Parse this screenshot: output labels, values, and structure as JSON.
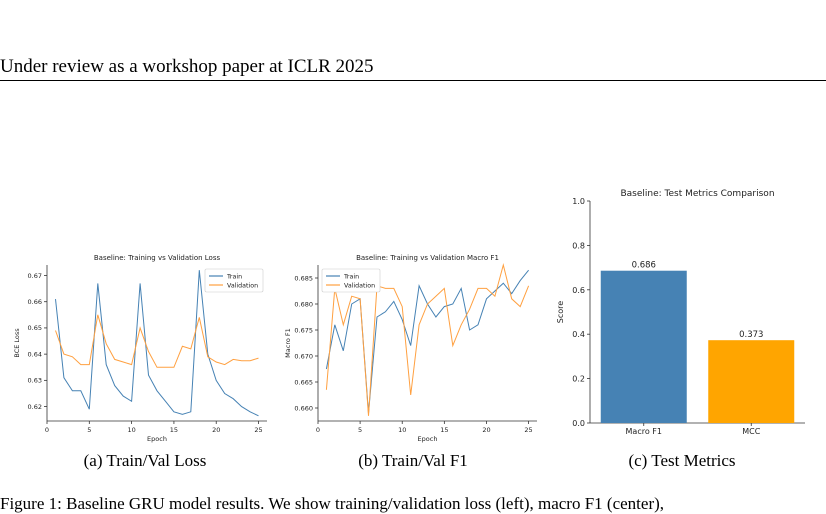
{
  "header": {
    "text": "Under review as a workshop paper at ICLR 2025"
  },
  "colors": {
    "train": "#4682b4",
    "validation": "#ffa040",
    "bar_macro": "#4682b4",
    "bar_mcc": "#ffa500"
  },
  "captions": [
    "(a) Train/Val Loss",
    "(b) Train/Val F1",
    "(c) Test Metrics"
  ],
  "body_text_partial": "Figure 1: Baseline GRU model results. We show training/validation loss (left), macro F1 (center),",
  "chart_data": [
    {
      "type": "line",
      "title": "Baseline: Training vs Validation Loss",
      "xlabel": "Epoch",
      "ylabel": "BCE Loss",
      "xlim": [
        0,
        26
      ],
      "ylim": [
        0.6145,
        0.674
      ],
      "xticks": [
        0,
        5,
        10,
        15,
        20,
        25
      ],
      "yticks": [
        0.62,
        0.63,
        0.64,
        0.65,
        0.66,
        0.67
      ],
      "ytick_decimals": 2,
      "legend": "top-right",
      "x": [
        1,
        2,
        3,
        4,
        5,
        6,
        7,
        8,
        9,
        10,
        11,
        12,
        13,
        14,
        15,
        16,
        17,
        18,
        19,
        20,
        21,
        22,
        23,
        24,
        25
      ],
      "series": [
        {
          "name": "Train",
          "color": "#4682b4",
          "values": [
            0.661,
            0.631,
            0.626,
            0.626,
            0.619,
            0.667,
            0.636,
            0.628,
            0.624,
            0.622,
            0.667,
            0.632,
            0.626,
            0.622,
            0.618,
            0.617,
            0.618,
            0.672,
            0.64,
            0.63,
            0.625,
            0.623,
            0.62,
            0.618,
            0.6165
          ]
        },
        {
          "name": "Validation",
          "color": "#ffa040",
          "values": [
            0.649,
            0.64,
            0.639,
            0.636,
            0.636,
            0.655,
            0.644,
            0.638,
            0.637,
            0.636,
            0.65,
            0.641,
            0.635,
            0.635,
            0.635,
            0.643,
            0.642,
            0.654,
            0.639,
            0.637,
            0.636,
            0.638,
            0.6375,
            0.6375,
            0.6385
          ]
        }
      ]
    },
    {
      "type": "line",
      "title": "Baseline: Training vs Validation Macro F1",
      "xlabel": "Epoch",
      "ylabel": "Macro F1",
      "xlim": [
        0,
        26
      ],
      "ylim": [
        0.6575,
        0.6875
      ],
      "xticks": [
        0,
        5,
        10,
        15,
        20,
        25
      ],
      "yticks": [
        0.66,
        0.665,
        0.67,
        0.675,
        0.68,
        0.685
      ],
      "ytick_decimals": 3,
      "legend": "top-left",
      "x": [
        1,
        2,
        3,
        4,
        5,
        6,
        7,
        8,
        9,
        10,
        11,
        12,
        13,
        14,
        15,
        16,
        17,
        18,
        19,
        20,
        21,
        22,
        23,
        24,
        25
      ],
      "series": [
        {
          "name": "Train",
          "color": "#4682b4",
          "values": [
            0.6675,
            0.676,
            0.671,
            0.68,
            0.681,
            0.659,
            0.6775,
            0.6785,
            0.6805,
            0.677,
            0.672,
            0.6835,
            0.68,
            0.6775,
            0.6795,
            0.68,
            0.683,
            0.675,
            0.676,
            0.681,
            0.6825,
            0.684,
            0.682,
            0.6845,
            0.6865
          ]
        },
        {
          "name": "Validation",
          "color": "#ffa040",
          "values": [
            0.6635,
            0.683,
            0.676,
            0.6815,
            0.681,
            0.6585,
            0.6835,
            0.683,
            0.683,
            0.6795,
            0.6625,
            0.676,
            0.68,
            0.6815,
            0.683,
            0.672,
            0.676,
            0.679,
            0.683,
            0.683,
            0.6815,
            0.6875,
            0.681,
            0.6795,
            0.6835
          ]
        }
      ]
    },
    {
      "type": "bar",
      "title": "Baseline: Test Metrics Comparison",
      "xlabel": "",
      "ylabel": "Score",
      "ylim": [
        0,
        1.0
      ],
      "yticks": [
        0.0,
        0.2,
        0.4,
        0.6,
        0.8,
        1.0
      ],
      "categories": [
        "Macro F1",
        "MCC"
      ],
      "values": [
        0.686,
        0.373
      ],
      "data_labels": [
        "0.686",
        "0.373"
      ],
      "colors": [
        "#4682b4",
        "#ffa500"
      ]
    }
  ]
}
